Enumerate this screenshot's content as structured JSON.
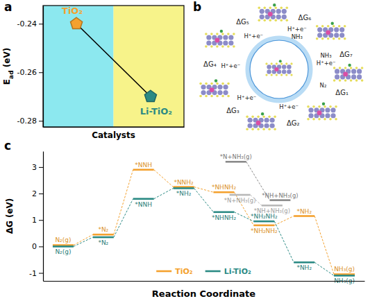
{
  "chart_data": [
    {
      "panel": "a",
      "type": "line",
      "categories": [
        null,
        null
      ],
      "values": [
        -0.24,
        -0.27
      ],
      "point_labels": [
        "TiO₂",
        "Li-TiO₂"
      ],
      "colors": [
        "#F4A12E",
        "#2B8A84"
      ],
      "color": "#000000",
      "marker": "pentagon",
      "xlabel": "Catalysts",
      "ylabel": "Ead (eV)",
      "ylim": [
        -0.2825,
        -0.2325
      ],
      "yticks": [
        -0.24,
        -0.26,
        -0.28
      ],
      "tick_labels": "y",
      "grid": false
    },
    {
      "panel": "c",
      "type": "energy_profile",
      "categories": [
        null,
        null,
        null,
        null,
        null,
        null,
        null,
        null
      ],
      "series": [
        {
          "name": "TiO₂",
          "color": "#F4A12E",
          "values": [
            0.05,
            0.45,
            2.9,
            2.25,
            2.05,
            0.8,
            1.15,
            -1.05
          ],
          "level_labels": [
            "N₂(g)",
            "*N₂",
            "*NNH",
            "*NNH₂",
            "*NHNH₂",
            "*NH₂NH₂",
            "*NH₂",
            "NH₃(g)"
          ]
        },
        {
          "name": "Li-TiO₂",
          "color": "#2B8A84",
          "values": [
            0.0,
            0.35,
            1.8,
            2.2,
            1.3,
            0.95,
            -0.6,
            -1.1
          ],
          "level_labels": [
            "N₂(g)",
            "*N₂",
            "*NNH",
            "*NH₂",
            "*NHNH₂",
            "*NH₂NH₂",
            "*NH₂",
            "NH₃(g)"
          ]
        }
      ],
      "branches": [
        {
          "color": "#8a8a8a",
          "x": [
            4.3,
            5.4
          ],
          "values": [
            3.2,
            1.75
          ],
          "level_labels": [
            "*N+NH₃(g)",
            "*NH+NH₃(g)"
          ]
        },
        {
          "color": "#b8b8b8",
          "x": [
            4.4,
            5.2
          ],
          "values": [
            1.95,
            1.55
          ],
          "level_labels": [
            "*N+NH₃(g)",
            "*NH+NH₃(g)"
          ]
        }
      ],
      "xlabel": "Reaction Coordinate",
      "ylabel": "ΔG (eV)",
      "ylim": [
        -1.3,
        3.6
      ],
      "yticks": [
        -1,
        0,
        1,
        2,
        3
      ],
      "tick_labels": "y",
      "legend": "lower center",
      "line_style": "dashed",
      "grid": false
    }
  ],
  "diagram": {
    "panel": "b",
    "steps": [
      {
        "label": "ΔG₁",
        "species": [
          "N₂"
        ]
      },
      {
        "label": "ΔG₂",
        "species": [
          "H⁺+e⁻"
        ]
      },
      {
        "label": "ΔG₃",
        "species": [
          "H⁺+e⁻"
        ]
      },
      {
        "label": "ΔG₄",
        "species": [
          "H⁺+e⁻"
        ]
      },
      {
        "label": "ΔG₅",
        "species": [
          "H⁺+e⁻"
        ]
      },
      {
        "label": "ΔG₆",
        "species": [
          "H⁺+e⁻",
          "NH₃"
        ]
      },
      {
        "label": "ΔG₇",
        "species": [
          "NH₃",
          "H⁺+e⁻"
        ]
      }
    ]
  }
}
